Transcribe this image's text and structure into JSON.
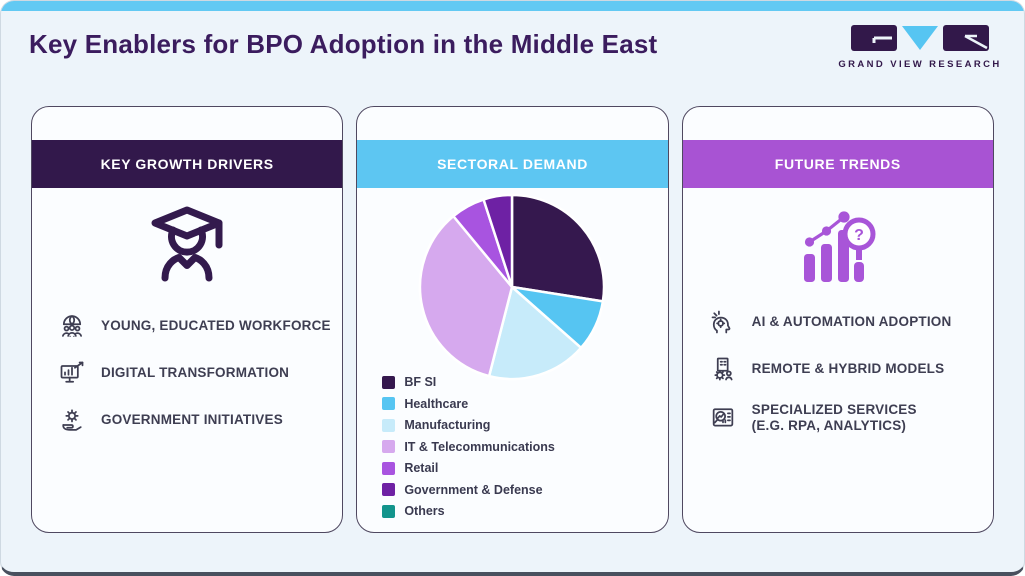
{
  "page": {
    "title": "Key Enablers for BPO Adoption in the Middle East",
    "brand": {
      "name": "GRAND VIEW RESEARCH"
    }
  },
  "colors": {
    "top_strip": "#62c9f3",
    "title": "#3b1c5e",
    "card_border": "#4f4860",
    "item_text": "#3e3e52",
    "trend_accent": "#a855d8",
    "driver_accent": "#331a4d"
  },
  "cards": {
    "drivers": {
      "header": "KEY GROWTH DRIVERS",
      "header_color": "#32184b",
      "hero_icon": "graduate-icon",
      "items": [
        {
          "icon": "workforce-globe-icon",
          "label": "YOUNG, EDUCATED WORKFORCE"
        },
        {
          "icon": "digital-transformation-icon",
          "label": "DIGITAL TRANSFORMATION"
        },
        {
          "icon": "government-initiatives-icon",
          "label": "GOVERNMENT INITIATIVES"
        }
      ]
    },
    "sectoral": {
      "header": "SECTORAL DEMAND",
      "header_color": "#5dc6f2"
    },
    "trends": {
      "header": "FUTURE TRENDS",
      "header_color": "#a853d3",
      "hero_icon": "rising-chart-magnifier-icon",
      "items": [
        {
          "icon": "ai-automation-icon",
          "label": "AI & AUTOMATION ADOPTION",
          "label2": ""
        },
        {
          "icon": "remote-hybrid-icon",
          "label": "REMOTE & HYBRID MODELS",
          "label2": ""
        },
        {
          "icon": "specialized-services-icon",
          "label": "SPECIALIZED SERVICES",
          "label2": "(E.G. RPA, ANALYTICS)"
        }
      ]
    }
  },
  "chart_data": {
    "type": "pie",
    "title": "Sectoral Demand",
    "legend_position": "bottom-left",
    "start_angle_deg": 0,
    "clockwise": true,
    "units": "percent (estimated from slice angles, no labels shown)",
    "series": [
      {
        "name": "BF SI",
        "value": 27.5,
        "color": "#35184e"
      },
      {
        "name": "Healthcare",
        "value": 9,
        "color": "#56c5f2"
      },
      {
        "name": "Manufacturing",
        "value": 17.5,
        "color": "#c7ebfa"
      },
      {
        "name": "IT & Telecommunications",
        "value": 35,
        "color": "#d6a9ee"
      },
      {
        "name": "Retail",
        "value": 6,
        "color": "#a854e0"
      },
      {
        "name": "Government & Defense",
        "value": 5,
        "color": "#6e21a4"
      },
      {
        "name": "Others",
        "value": 0,
        "color": "#12948c"
      }
    ]
  }
}
